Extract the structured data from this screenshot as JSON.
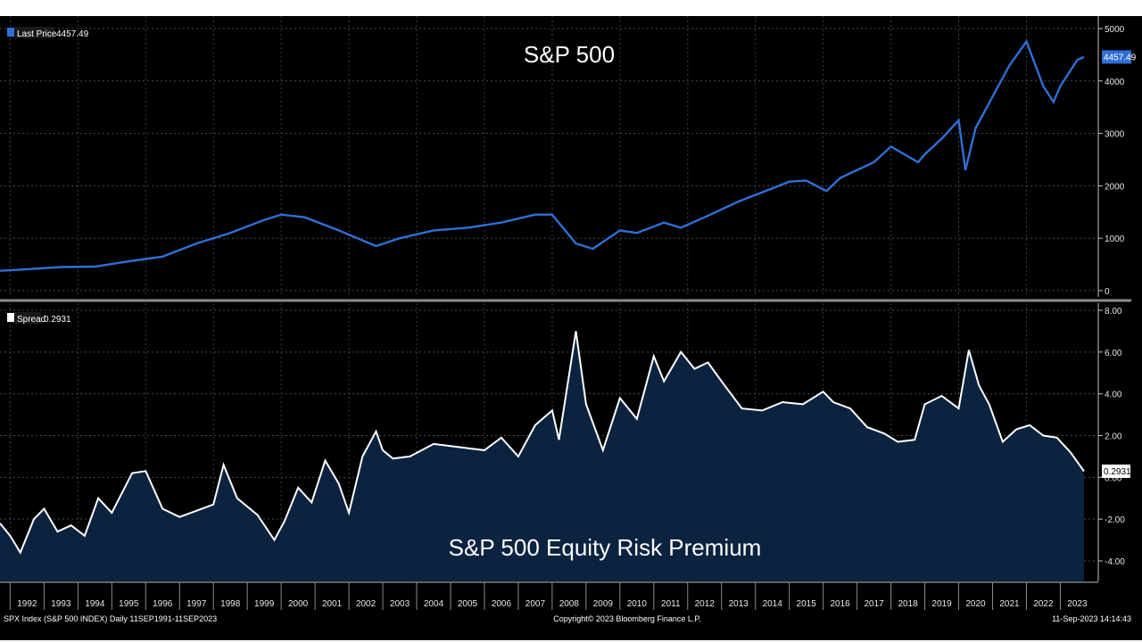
{
  "chart_data": [
    {
      "type": "line",
      "title": "S&P 500",
      "legend": {
        "label": "Last Price",
        "value": "4457.49",
        "color": "#2f6fd6"
      },
      "last_value_label": "4457.49",
      "ylim": [
        0,
        5000
      ],
      "yticks": [
        "0",
        "1000",
        "2000",
        "3000",
        "4000",
        "5000"
      ],
      "x": [
        1991.7,
        1992.5,
        1993.5,
        1994.5,
        1995.5,
        1996.5,
        1997.5,
        1998.5,
        1999.5,
        2000.0,
        2000.7,
        2001.7,
        2002.8,
        2003.5,
        2004.5,
        2005.5,
        2006.5,
        2007.5,
        2008.0,
        2008.7,
        2009.2,
        2010.0,
        2010.5,
        2011.3,
        2011.8,
        2012.5,
        2013.5,
        2014.5,
        2015.0,
        2015.5,
        2016.1,
        2016.5,
        2017.5,
        2018.0,
        2018.8,
        2019.0,
        2019.5,
        2020.0,
        2020.2,
        2020.5,
        2021.0,
        2021.5,
        2022.0,
        2022.5,
        2022.8,
        2023.0,
        2023.5,
        2023.7
      ],
      "values": [
        380,
        410,
        450,
        460,
        560,
        650,
        900,
        1100,
        1350,
        1450,
        1400,
        1150,
        850,
        1000,
        1150,
        1200,
        1300,
        1450,
        1450,
        900,
        800,
        1150,
        1100,
        1300,
        1200,
        1400,
        1700,
        1950,
        2080,
        2100,
        1900,
        2150,
        2450,
        2750,
        2450,
        2600,
        2900,
        3250,
        2300,
        3100,
        3700,
        4300,
        4750,
        3900,
        3600,
        3900,
        4400,
        4457.49
      ]
    },
    {
      "type": "area",
      "title": "S&P 500 Equity Risk Premium",
      "legend": {
        "label": "Spread",
        "value": "0.2931",
        "color": "#ffffff"
      },
      "last_value_label": "0.2931",
      "ylim": [
        -4.8,
        8.3
      ],
      "yticks": [
        "-4.00",
        "-2.00",
        "0.00",
        "2.00",
        "4.00",
        "6.00",
        "8.00"
      ],
      "x": [
        1991.7,
        1992.0,
        1992.3,
        1992.7,
        1993.0,
        1993.4,
        1993.8,
        1994.2,
        1994.6,
        1995.0,
        1995.6,
        1996.0,
        1996.5,
        1997.0,
        1997.5,
        1998.0,
        1998.3,
        1998.7,
        1999.3,
        1999.8,
        2000.1,
        2000.5,
        2000.9,
        2001.3,
        2001.7,
        2002.0,
        2002.4,
        2002.8,
        2003.0,
        2003.3,
        2003.8,
        2004.5,
        2005.0,
        2005.5,
        2006.0,
        2006.5,
        2007.0,
        2007.5,
        2008.0,
        2008.2,
        2008.7,
        2009.0,
        2009.5,
        2010.0,
        2010.5,
        2011.0,
        2011.3,
        2011.8,
        2012.2,
        2012.6,
        2013.0,
        2013.6,
        2014.2,
        2014.8,
        2015.4,
        2016.0,
        2016.3,
        2016.8,
        2017.3,
        2017.8,
        2018.2,
        2018.7,
        2019.0,
        2019.5,
        2020.0,
        2020.3,
        2020.6,
        2020.9,
        2021.3,
        2021.7,
        2022.1,
        2022.5,
        2022.9,
        2023.3,
        2023.7
      ],
      "values": [
        -2.2,
        -2.8,
        -3.6,
        -2.0,
        -1.5,
        -2.6,
        -2.3,
        -2.8,
        -1.0,
        -1.7,
        0.2,
        0.3,
        -1.5,
        -1.9,
        -1.6,
        -1.3,
        0.6,
        -1.0,
        -1.8,
        -3.0,
        -2.1,
        -0.5,
        -1.2,
        0.8,
        -0.3,
        -1.7,
        1.0,
        2.2,
        1.3,
        0.9,
        1.0,
        1.6,
        1.5,
        1.4,
        1.3,
        1.9,
        1.0,
        2.5,
        3.2,
        1.8,
        7.0,
        3.5,
        1.3,
        3.8,
        2.8,
        5.8,
        4.6,
        6.0,
        5.2,
        5.5,
        4.6,
        3.3,
        3.2,
        3.6,
        3.5,
        4.1,
        3.6,
        3.3,
        2.4,
        2.1,
        1.7,
        1.8,
        3.5,
        3.9,
        3.3,
        6.1,
        4.4,
        3.5,
        1.7,
        2.3,
        2.5,
        2.0,
        1.9,
        1.2,
        0.2931
      ]
    }
  ],
  "x_axis": {
    "years": [
      "1992",
      "1993",
      "1994",
      "1995",
      "1996",
      "1997",
      "1998",
      "1999",
      "2000",
      "2001",
      "2002",
      "2003",
      "2004",
      "2005",
      "2006",
      "2007",
      "2008",
      "2009",
      "2010",
      "2011",
      "2012",
      "2013",
      "2014",
      "2015",
      "2016",
      "2017",
      "2018",
      "2019",
      "2020",
      "2021",
      "2022",
      "2023"
    ]
  },
  "footer": {
    "left": "SPX Index  (S&P 500 INDEX)  Daily  11SEP1991-11SEP2023",
    "center": "Copyright© 2023 Bloomberg Finance L.P.",
    "right": "11-Sep-2023  14:14:43"
  },
  "colors": {
    "background": "#000000",
    "price_line": "#2f6fd6",
    "spread_line": "#ffffff",
    "spread_fill": "#0c2340",
    "grid": "#4a4a4a"
  }
}
